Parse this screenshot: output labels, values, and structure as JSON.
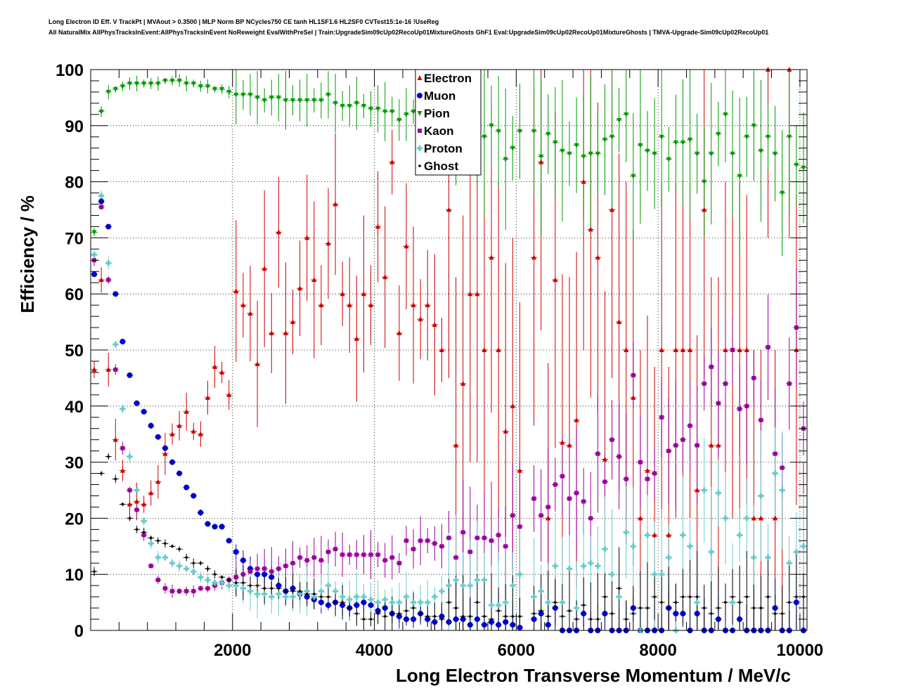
{
  "header": {
    "line1": "Long Electron ID Eff. V TrackPt | MVAout > 0.3500 | MLP Norm BP NCycles750 CE tanh HL1SF1.6 HL2SF0 CVTest15:1e-16 !UseReg",
    "line2": "All NaturalMix AllPhysTracksInEvent:AllPhysTracksInEvent NoReweight EvalWithPreSel | Train:UpgradeSim09cUp02RecoUp01MixtureGhosts GhF1 Eval:UpgradeSim09cUp02RecoUp01MixtureGhosts | TMVA-Upgrade-Sim09cUp02RecoUp01"
  },
  "chart_data": {
    "type": "scatter",
    "xlabel": "Long Electron Transverse Momentum / MeV/c",
    "ylabel": "Efficiency / %",
    "xlim": [
      0,
      10100
    ],
    "ylim": [
      0,
      100
    ],
    "x_ticks": [
      2000,
      4000,
      6000,
      8000,
      10000
    ],
    "y_ticks": [
      0,
      10,
      20,
      30,
      40,
      50,
      60,
      70,
      80,
      90,
      100
    ],
    "grid": true,
    "legend_position": "top-center",
    "series": [
      {
        "name": "Electron",
        "color": "#cc0000",
        "marker": "triangle-up",
        "x": [
          50,
          150,
          250,
          350,
          450,
          550,
          650,
          750,
          850,
          950,
          1050,
          1150,
          1250,
          1350,
          1450,
          1550,
          1650,
          1750,
          1850,
          1950,
          2050,
          2150,
          2250,
          2350,
          2450,
          2550,
          2650,
          2750,
          2850,
          2950,
          3050,
          3150,
          3250,
          3350,
          3450,
          3550,
          3650,
          3750,
          3850,
          3950,
          4050,
          4150,
          4250,
          4350,
          4450,
          4550,
          4650,
          4750,
          4850,
          4950,
          5050,
          5150,
          5250,
          5350,
          5450,
          5550,
          5650,
          5750,
          5850,
          5950,
          6050,
          6250,
          6350,
          6450,
          6550,
          6650,
          6750,
          6850,
          6950,
          7050,
          7150,
          7250,
          7350,
          7450,
          7550,
          7650,
          7750,
          7850,
          7950,
          8050,
          8150,
          8250,
          8350,
          8450,
          8550,
          8650,
          8750,
          8850,
          8950,
          9050,
          9150,
          9250,
          9350,
          9450,
          9550,
          9650,
          9750,
          9850,
          9950,
          10050
        ],
        "y": [
          46.5,
          62.5,
          46.5,
          34,
          28.5,
          22.5,
          23,
          22.5,
          24.5,
          26.5,
          31.5,
          35,
          36.5,
          39,
          35.5,
          35,
          41.5,
          47,
          46,
          42,
          60.5,
          58,
          56.5,
          47.5,
          64.5,
          53,
          71,
          53,
          55,
          61,
          70,
          62.5,
          58,
          69,
          76,
          60,
          58,
          52,
          60,
          58,
          72,
          63,
          83.5,
          53,
          68.5,
          58,
          55.5,
          58,
          54.5,
          50,
          75,
          33,
          44,
          60,
          60,
          50,
          66.5,
          50,
          35.5,
          40,
          28.5,
          66.5,
          83.5,
          20,
          62.5,
          33.5,
          33,
          37.5,
          80,
          71.5,
          66.5,
          30.5,
          75,
          55,
          50,
          41.5,
          20,
          28.5,
          17,
          50,
          17,
          50,
          50,
          50,
          25,
          75,
          33,
          33,
          50,
          50,
          50,
          50,
          20,
          20,
          100,
          20,
          0,
          100,
          50,
          0
        ]
      },
      {
        "name": "Muon",
        "color": "#0000cc",
        "marker": "circle",
        "x": [
          50,
          150,
          250,
          350,
          450,
          550,
          650,
          750,
          850,
          950,
          1050,
          1150,
          1250,
          1350,
          1450,
          1550,
          1650,
          1750,
          1850,
          1950,
          2050,
          2150,
          2250,
          2350,
          2450,
          2550,
          2650,
          2750,
          2850,
          2950,
          3050,
          3150,
          3250,
          3350,
          3450,
          3550,
          3650,
          3750,
          3850,
          3950,
          4050,
          4150,
          4250,
          4350,
          4450,
          4550,
          4650,
          4750,
          4850,
          4950,
          5050,
          5150,
          5250,
          5350,
          5450,
          5550,
          5650,
          5750,
          5850,
          5950,
          6050,
          6250,
          6350,
          6450,
          6550,
          6650,
          6750,
          6850,
          6950,
          7050,
          7150,
          7250,
          7350,
          7450,
          7550,
          7650,
          7750,
          7850,
          7950,
          8050,
          8150,
          8250,
          8350,
          8450,
          8550,
          8650,
          8750,
          8850,
          8950,
          9050,
          9150,
          9250,
          9350,
          9450,
          9550,
          9650,
          9750,
          9850,
          9950,
          10050
        ],
        "y": [
          63.5,
          76.5,
          72,
          60,
          51.5,
          45.5,
          40.5,
          39,
          36.5,
          34.5,
          32.5,
          30,
          28,
          25.5,
          24,
          21,
          19,
          18.5,
          18.5,
          16,
          14,
          12.5,
          11,
          10,
          10,
          9.5,
          8,
          7,
          7.5,
          6.5,
          6,
          5.5,
          5,
          4.5,
          5,
          4.5,
          4,
          4.5,
          5,
          4.5,
          3.5,
          4,
          3,
          2.5,
          2,
          2,
          3,
          2,
          1.5,
          2.5,
          1.5,
          2,
          2,
          1,
          2,
          1,
          1.5,
          1,
          1.5,
          1,
          0.5,
          2,
          3,
          1,
          4,
          0,
          0,
          0,
          3,
          0,
          0,
          3,
          0,
          0,
          0,
          4,
          0,
          0,
          0,
          0,
          4,
          3,
          3,
          0,
          3,
          0,
          0,
          2,
          0,
          0,
          2,
          0,
          0,
          0,
          0,
          4,
          0,
          0,
          5,
          0
        ]
      },
      {
        "name": "Pion",
        "color": "#009900",
        "marker": "triangle-down",
        "x": [
          50,
          150,
          250,
          350,
          450,
          550,
          650,
          750,
          850,
          950,
          1050,
          1150,
          1250,
          1350,
          1450,
          1550,
          1650,
          1750,
          1850,
          1950,
          2050,
          2150,
          2250,
          2350,
          2450,
          2550,
          2650,
          2750,
          2850,
          2950,
          3050,
          3150,
          3250,
          3350,
          3450,
          3550,
          3650,
          3750,
          3850,
          3950,
          4050,
          4150,
          4250,
          4350,
          4450,
          4550,
          4650,
          4750,
          4850,
          4950,
          5050,
          5150,
          5250,
          5350,
          5450,
          5550,
          5650,
          5750,
          5850,
          5950,
          6050,
          6250,
          6350,
          6450,
          6550,
          6650,
          6750,
          6850,
          6950,
          7050,
          7150,
          7250,
          7350,
          7450,
          7550,
          7650,
          7750,
          7850,
          7950,
          8050,
          8150,
          8250,
          8350,
          8450,
          8550,
          8650,
          8750,
          8850,
          8950,
          9050,
          9150,
          9250,
          9350,
          9450,
          9550,
          9650,
          9750,
          9850,
          9950,
          10050
        ],
        "y": [
          71,
          92.5,
          96,
          96.5,
          97,
          97.5,
          97.5,
          97.5,
          97.5,
          97.5,
          98,
          98,
          98,
          97.5,
          97.5,
          97,
          97,
          96.5,
          96.5,
          96,
          95.5,
          95.5,
          95.5,
          95,
          94.5,
          95,
          95,
          94.5,
          94.5,
          94.5,
          94.5,
          94.5,
          94.5,
          95.5,
          94,
          93.5,
          93.5,
          94,
          93.5,
          93,
          93,
          92.5,
          92.5,
          91,
          92,
          92.5,
          90.5,
          90.5,
          91,
          90,
          91,
          92,
          91.5,
          92,
          90.5,
          88,
          90,
          89,
          84,
          86,
          89,
          89,
          84.5,
          88.5,
          87,
          85.5,
          85,
          86.5,
          84.5,
          85,
          85,
          87.5,
          88,
          91,
          92,
          81,
          86.5,
          85.5,
          85,
          88,
          84,
          87,
          87,
          87.5,
          85,
          80,
          85,
          88.5,
          92,
          85,
          81,
          88,
          90,
          85.5,
          88,
          85,
          78,
          88,
          83,
          82.5
        ]
      },
      {
        "name": "Kaon",
        "color": "#990099",
        "marker": "square",
        "x": [
          50,
          150,
          250,
          350,
          450,
          550,
          650,
          750,
          850,
          950,
          1050,
          1150,
          1250,
          1350,
          1450,
          1550,
          1650,
          1750,
          1850,
          1950,
          2050,
          2150,
          2250,
          2350,
          2450,
          2550,
          2650,
          2750,
          2850,
          2950,
          3050,
          3150,
          3250,
          3350,
          3450,
          3550,
          3650,
          3750,
          3850,
          3950,
          4050,
          4150,
          4250,
          4350,
          4450,
          4550,
          4650,
          4750,
          4850,
          4950,
          5050,
          5150,
          5250,
          5350,
          5450,
          5550,
          5650,
          5750,
          5850,
          5950,
          6050,
          6250,
          6350,
          6450,
          6550,
          6650,
          6750,
          6850,
          6950,
          7050,
          7150,
          7250,
          7350,
          7450,
          7550,
          7650,
          7750,
          7850,
          7950,
          8050,
          8150,
          8250,
          8350,
          8450,
          8550,
          8650,
          8750,
          8850,
          8950,
          9050,
          9150,
          9250,
          9350,
          9450,
          9550,
          9650,
          9750,
          9850,
          9950,
          10050
        ],
        "y": [
          66,
          75.5,
          62.5,
          46.5,
          32.5,
          25,
          21.5,
          17,
          11.5,
          9,
          7.5,
          7,
          7,
          7,
          7,
          7.5,
          7.5,
          8,
          8.5,
          9,
          9.5,
          10,
          10.5,
          11,
          11,
          10.5,
          11,
          11.5,
          12,
          13,
          12.5,
          13,
          12.5,
          14,
          14.5,
          13.5,
          13.5,
          13.5,
          13.5,
          13.5,
          13.5,
          12.5,
          13,
          12,
          16,
          14.5,
          16,
          16,
          15.5,
          15,
          16.5,
          13,
          17.5,
          14,
          16.5,
          16.5,
          16,
          17,
          15,
          20.5,
          18.5,
          23.5,
          20.5,
          22,
          26,
          27.5,
          23.5,
          24.5,
          23,
          20,
          31.5,
          26.5,
          34,
          31,
          27,
          45.5,
          30,
          27,
          28,
          38,
          32,
          33,
          34,
          36.5,
          33,
          44,
          47,
          40.5,
          44,
          50,
          39.5,
          40,
          45,
          37.5,
          50.5,
          31.5,
          29,
          44,
          54,
          36
        ]
      },
      {
        "name": "Proton",
        "color": "#66cccc",
        "marker": "cross",
        "x": [
          50,
          150,
          250,
          350,
          450,
          550,
          650,
          750,
          850,
          950,
          1050,
          1150,
          1250,
          1350,
          1450,
          1550,
          1650,
          1750,
          1850,
          1950,
          2050,
          2150,
          2250,
          2350,
          2450,
          2550,
          2650,
          2750,
          2850,
          2950,
          3050,
          3150,
          3250,
          3350,
          3450,
          3550,
          3650,
          3750,
          3850,
          3950,
          4050,
          4150,
          4250,
          4350,
          4450,
          4550,
          4650,
          4750,
          4850,
          4950,
          5050,
          5150,
          5250,
          5350,
          5450,
          5550,
          5650,
          5750,
          5850,
          5950,
          6050,
          6250,
          6350,
          6450,
          6550,
          6650,
          6750,
          6850,
          6950,
          7050,
          7150,
          7250,
          7350,
          7450,
          7550,
          7650,
          7750,
          7850,
          7950,
          8050,
          8150,
          8250,
          8350,
          8450,
          8550,
          8650,
          8750,
          8850,
          8950,
          9050,
          9150,
          9250,
          9350,
          9450,
          9550,
          9650,
          9750,
          9850,
          9950,
          10050
        ],
        "y": [
          67,
          77.5,
          65.5,
          51,
          39.5,
          31,
          25,
          19.5,
          15.5,
          13,
          13,
          12,
          11.5,
          11,
          10.5,
          9.5,
          9,
          8.5,
          8.5,
          8,
          8,
          7.5,
          7,
          6.5,
          6.5,
          6,
          6.5,
          6,
          6,
          6.5,
          7,
          6,
          7,
          8,
          7,
          6,
          5.5,
          6,
          6,
          5.5,
          5,
          5.5,
          5,
          5,
          6,
          5,
          5,
          5,
          6,
          7,
          8,
          9,
          8,
          8,
          9,
          9,
          4.5,
          4.5,
          5,
          8,
          10,
          6,
          7,
          5,
          11.5,
          5,
          11,
          4,
          11.5,
          12,
          11.5,
          14.5,
          10,
          6,
          17.5,
          15,
          0,
          17,
          10,
          10,
          13,
          0,
          17,
          15,
          5,
          25,
          14,
          24.5,
          20,
          5,
          17,
          20,
          13,
          24,
          13,
          28,
          25,
          12,
          14,
          15
        ]
      },
      {
        "name": "Ghost",
        "color": "#000000",
        "marker": "dot",
        "x": [
          50,
          150,
          250,
          350,
          450,
          550,
          650,
          750,
          850,
          950,
          1050,
          1150,
          1250,
          1350,
          1450,
          1550,
          1650,
          1750,
          1850,
          1950,
          2050,
          2150,
          2250,
          2350,
          2450,
          2550,
          2650,
          2750,
          2850,
          2950,
          3050,
          3150,
          3250,
          3350,
          3450,
          3550,
          3650,
          3750,
          3850,
          3950,
          4050,
          4150,
          4250,
          4350,
          4450,
          4550,
          4650,
          4750,
          4850,
          4950,
          5050,
          5150,
          5250,
          5350,
          5450,
          5550,
          5650,
          5750,
          5850,
          5950,
          6050,
          6250,
          6350,
          6450,
          6550,
          6650,
          6750,
          6850,
          6950,
          7050,
          7150,
          7250,
          7350,
          7450,
          7550,
          7650,
          7750,
          7850,
          7950,
          8050,
          8150,
          8250,
          8350,
          8450,
          8550,
          8650,
          8750,
          8850,
          8950,
          9050,
          9150,
          9250,
          9350,
          9450,
          9550,
          9650,
          9750,
          9850,
          9950,
          10050
        ],
        "y": [
          10.5,
          28,
          31,
          27,
          22.5,
          20,
          18,
          17.5,
          16.5,
          16,
          15.5,
          15,
          14.5,
          13,
          12,
          12,
          11,
          10,
          9.5,
          9,
          8.5,
          8.5,
          8,
          8,
          7.5,
          7.5,
          7.5,
          7,
          7,
          7,
          6.5,
          6.5,
          6,
          6,
          5,
          5,
          4,
          3,
          2,
          2,
          3,
          2.5,
          3,
          3,
          3.5,
          4,
          3,
          2.5,
          2.5,
          2,
          5,
          4,
          2.5,
          2.5,
          5,
          2.5,
          2,
          3.5,
          2.5,
          2.5,
          2.5,
          3,
          3.5,
          2.5,
          5,
          2.5,
          3.5,
          2,
          4.5,
          2,
          2,
          6,
          3,
          7.5,
          2,
          3,
          4,
          4,
          6,
          5,
          4,
          5,
          6,
          6,
          6,
          4,
          3,
          4,
          5,
          6,
          5,
          6,
          4,
          4,
          6,
          3,
          3,
          5,
          6,
          6
        ]
      }
    ]
  }
}
